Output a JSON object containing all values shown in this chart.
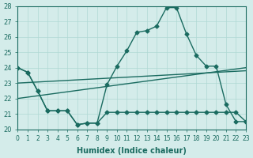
{
  "title": "",
  "xlabel": "Humidex (Indice chaleur)",
  "ylabel": "",
  "bg_color": "#d4ecea",
  "grid_color": "#b0d8d4",
  "line_color": "#1a6b60",
  "xlim": [
    0,
    23
  ],
  "ylim": [
    20,
    28
  ],
  "yticks": [
    20,
    21,
    22,
    23,
    24,
    25,
    26,
    27,
    28
  ],
  "xticks": [
    0,
    1,
    2,
    3,
    4,
    5,
    6,
    7,
    8,
    9,
    10,
    11,
    12,
    13,
    14,
    15,
    16,
    17,
    18,
    19,
    20,
    21,
    22,
    23
  ],
  "series": [
    {
      "x": [
        0,
        1,
        2,
        3,
        4,
        5,
        6,
        7,
        8,
        9,
        10,
        11,
        12,
        13,
        14,
        15,
        16,
        17,
        18,
        19,
        20,
        21,
        22,
        23
      ],
      "y": [
        24.0,
        23.7,
        22.5,
        21.2,
        21.2,
        21.2,
        20.3,
        20.4,
        20.4,
        22.9,
        24.1,
        25.1,
        26.3,
        26.4,
        26.7,
        27.9,
        27.9,
        26.2,
        24.8,
        24.1,
        24.1,
        21.6,
        20.5,
        20.5
      ]
    },
    {
      "x": [
        0,
        1,
        2,
        3,
        4,
        5,
        6,
        7,
        8,
        9,
        10,
        11,
        12,
        13,
        14,
        15,
        16,
        17,
        18,
        19,
        20,
        21,
        22,
        23
      ],
      "y": [
        24.0,
        23.7,
        22.5,
        21.2,
        21.2,
        21.2,
        20.3,
        20.4,
        20.4,
        21.1,
        21.1,
        21.1,
        21.1,
        21.1,
        21.1,
        21.1,
        21.1,
        21.1,
        21.1,
        21.1,
        21.1,
        21.1,
        21.1,
        20.5
      ]
    },
    {
      "x": [
        0,
        23
      ],
      "y": [
        22.0,
        24.0
      ]
    },
    {
      "x": [
        0,
        23
      ],
      "y": [
        23.0,
        23.8
      ]
    }
  ]
}
